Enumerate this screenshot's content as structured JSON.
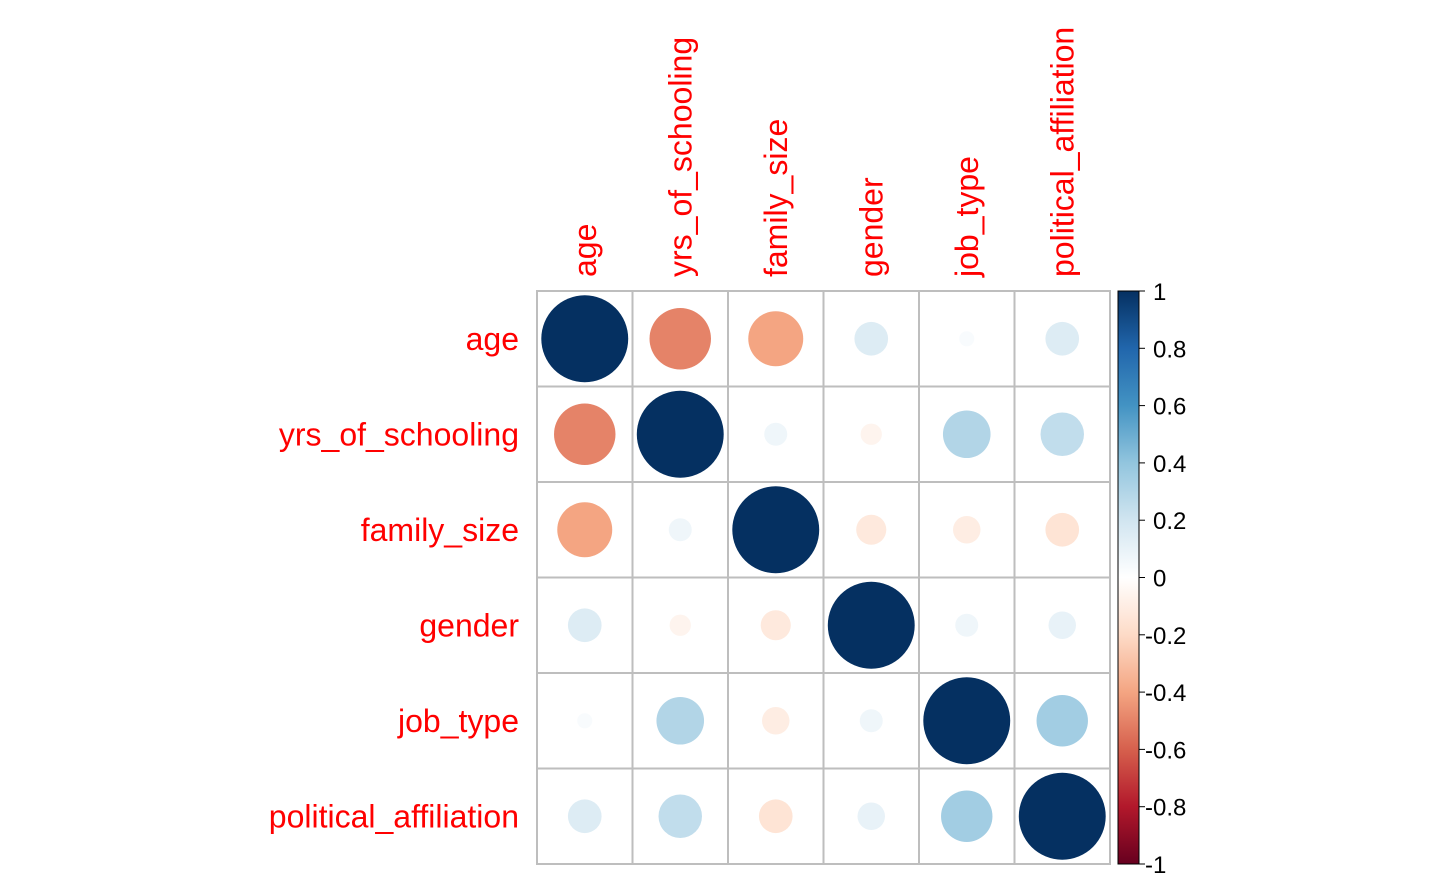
{
  "chart_data": {
    "type": "heatmap",
    "subtype": "correlation-circles",
    "variables": [
      "age",
      "yrs_of_schooling",
      "family_size",
      "gender",
      "job_type",
      "political_affiliation"
    ],
    "matrix": [
      [
        1.0,
        -0.5,
        -0.4,
        0.15,
        0.03,
        0.15
      ],
      [
        -0.5,
        1.0,
        0.07,
        -0.06,
        0.3,
        0.25
      ],
      [
        -0.4,
        0.07,
        1.0,
        -0.12,
        -0.1,
        -0.15
      ],
      [
        0.15,
        -0.06,
        -0.12,
        1.0,
        0.07,
        0.1
      ],
      [
        0.03,
        0.3,
        -0.1,
        0.07,
        1.0,
        0.35
      ],
      [
        0.15,
        0.25,
        -0.15,
        0.1,
        0.35,
        1.0
      ]
    ],
    "colorbar": {
      "ticks": [
        "1",
        "0.8",
        "0.6",
        "0.4",
        "0.2",
        "0",
        "-0.2",
        "-0.4",
        "-0.6",
        "-0.8",
        "-1"
      ],
      "range": [
        -1,
        1
      ]
    },
    "label_color": "#FF0000",
    "grid_color": "#BEBEBE",
    "palette": [
      "#67001F",
      "#B2182B",
      "#D6604D",
      "#F4A582",
      "#FDDBC7",
      "#FFFFFF",
      "#D1E5F0",
      "#92C5DE",
      "#4393C3",
      "#2166AC",
      "#053061"
    ]
  }
}
